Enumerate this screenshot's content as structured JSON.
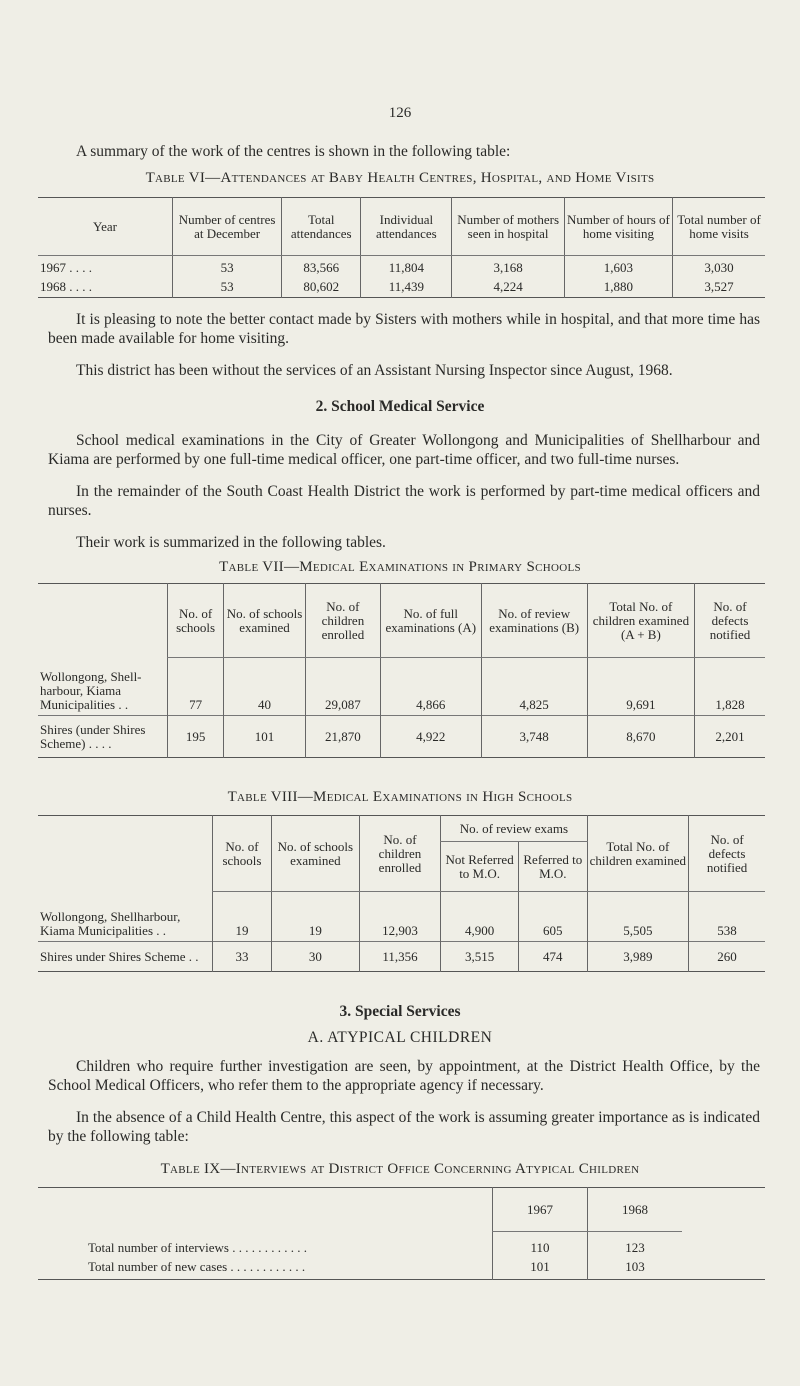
{
  "page_number": "126",
  "intro": "A summary of the work of the centres is shown in the following table:",
  "table6": {
    "title": "Table VI—Attendances at Baby Health Centres, Hospital, and Home Visits",
    "headers": [
      "Year",
      "Number of centres at December",
      "Total attendances",
      "Individual attendances",
      "Number of mothers seen in hospital",
      "Number of hours of home visiting",
      "Total number of home visits"
    ],
    "rows": [
      [
        "1967 . . . .",
        "53",
        "83,566",
        "11,804",
        "3,168",
        "1,603",
        "3,030"
      ],
      [
        "1968 . . . .",
        "53",
        "80,602",
        "11,439",
        "4,224",
        "1,880",
        "3,527"
      ]
    ]
  },
  "para1": "It is pleasing to note the better contact made by Sisters with mothers while in hospital, and that more time has been made available for home visiting.",
  "para2": "This district has been without the services of an Assistant Nursing Inspector since August, 1968.",
  "heading2": "2. School Medical Service",
  "para3": "School medical examinations in the City of Greater Wollongong and Municipalities of Shellharbour and Kiama are performed by one full-time medical officer, one part-time officer, and two full-time nurses.",
  "para4": "In the remainder of the South Coast Health District the work is performed by part-time medical officers and nurses.",
  "para5": "Their work is summarized in the following tables.",
  "table7": {
    "title": "Table VII—Medical Examinations in Primary Schools",
    "headers": [
      "No. of schools",
      "No. of schools examined",
      "No. of children enrolled",
      "No. of full examinations (A)",
      "No. of review examinations (B)",
      "Total No. of children examined (A + B)",
      "No. of defects notified"
    ],
    "rows": [
      {
        "label": "Wollongong, Shell-harbour, Kiama Municipalities . .",
        "values": [
          "77",
          "40",
          "29,087",
          "4,866",
          "4,825",
          "9,691",
          "1,828"
        ]
      },
      {
        "label": "Shires (under Shires Scheme) . . . .",
        "values": [
          "195",
          "101",
          "21,870",
          "4,922",
          "3,748",
          "8,670",
          "2,201"
        ]
      }
    ]
  },
  "table8": {
    "title": "Table VIII—Medical Examinations in High Schools",
    "headers": [
      "No. of schools",
      "No. of schools examined",
      "No. of children enrolled",
      "No. of review exams",
      "Total No. of children examined",
      "No. of defects notified"
    ],
    "subheaders": [
      "Not Referred to M.O.",
      "Referred to M.O."
    ],
    "rows": [
      {
        "label": "Wollongong, Shellharbour, Kiama Municipalities . .",
        "values": [
          "19",
          "19",
          "12,903",
          "4,900",
          "605",
          "5,505",
          "538"
        ]
      },
      {
        "label": "Shires under Shires Scheme . .",
        "values": [
          "33",
          "30",
          "11,356",
          "3,515",
          "474",
          "3,989",
          "260"
        ]
      }
    ]
  },
  "heading3": "3. Special Services",
  "heading3a": "A. ATYPICAL CHILDREN",
  "para6": "Children who require further investigation are seen, by appointment, at the District Health Office, by the School Medical Officers, who refer them to the appropriate agency if necessary.",
  "para7": "In the absence of a Child Health Centre, this aspect of the work is assuming greater importance as is indicated by the following table:",
  "table9": {
    "title": "Table IX—Interviews at District Office Concerning Atypical Children",
    "headers": [
      "1967",
      "1968"
    ],
    "rows": [
      {
        "label": "Total number of interviews . . . . . . . . . . . .",
        "values": [
          "110",
          "123"
        ]
      },
      {
        "label": "Total number of new cases . . . . . . . . . . . .",
        "values": [
          "101",
          "103"
        ]
      }
    ]
  }
}
